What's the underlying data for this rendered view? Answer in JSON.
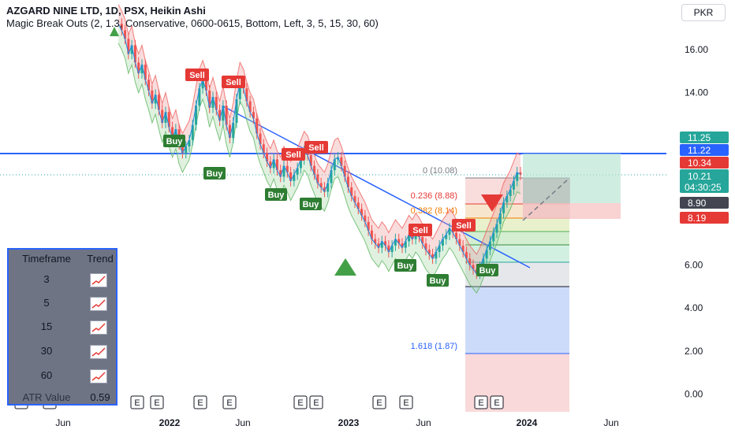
{
  "header": {
    "title": "AZGARD NINE LTD, 1D, PSX, Heikin Ashi",
    "indicator": "Magic Break Outs (2, 1.3, Conservative, 0600-0615, Bottom, Left, 3, 5, 15, 30, 60)"
  },
  "currency_button": "PKR",
  "price_tags": {
    "tag_1125": "11.25",
    "tag_1122": "11.22",
    "tag_1034": "10.34",
    "tag_1021": "10.21",
    "tag_countdown": "04:30:25",
    "tag_890": "8.90",
    "tag_819": "8.19"
  },
  "fib_labels": [
    "0 (10.08)",
    "0.236 (8.88)",
    "0.382 (8.14)",
    "1.618 (1.87)"
  ],
  "signal_labels": {
    "buy": "Buy",
    "sell": "Sell"
  },
  "earnings_marker": "E",
  "trend_table": {
    "headers": [
      "Timeframe",
      "Trend"
    ],
    "rows": [
      "3",
      "5",
      "15",
      "30",
      "60"
    ],
    "atr_label": "ATR Value",
    "atr_value": "0.59"
  },
  "colors": {
    "up": "#26a69a",
    "down": "#ef5350",
    "trendline": "#2962ff",
    "buy_label": "#2e7d32",
    "sell_label": "#e53935"
  },
  "chart_data": {
    "type": "line",
    "title": "AZGARD NINE LTD, 1D, PSX, Heikin Ashi",
    "y_ticks": [
      0,
      2,
      4,
      6,
      8,
      10,
      12,
      14,
      16
    ],
    "y_tick_labels": [
      "0.00",
      "2.00",
      "4.00",
      "6.00",
      "",
      "",
      "",
      "14.00",
      "16.00"
    ],
    "x_tick_labels": [
      "Jun",
      "2022",
      "Jun",
      "2023",
      "Jun",
      "2024",
      "Jun"
    ],
    "ylim": [
      -1,
      18
    ],
    "grid": false,
    "series": [
      {
        "values": [
          17.2,
          16.9,
          16.5,
          15.8,
          16.2,
          15.4,
          14.9,
          15.3,
          14.6,
          14.1,
          13.5,
          13.9,
          13.2,
          12.6,
          13.1,
          12.4,
          11.9,
          12.3,
          11.6,
          11.2,
          11.5,
          11.8,
          12.5,
          13.4,
          14.2,
          14.6,
          14.1,
          13.3,
          13.8,
          13.2,
          12.7,
          13.4,
          12.5,
          11.9,
          12.6,
          13.7,
          14.5,
          14.2,
          13.6,
          13.1,
          12.8,
          12.1,
          11.6,
          11.2,
          10.8,
          10.5,
          10.9,
          10.4,
          10.1,
          10.6,
          10.3,
          9.9,
          10.2,
          10.5,
          10.9,
          11.3,
          11.1,
          10.6,
          10.2,
          9.8,
          9.6,
          9.4,
          9.8,
          10.4,
          10.9,
          11.0,
          10.6,
          10.1,
          9.6,
          9.2,
          8.9,
          8.6,
          8.3,
          8.0,
          7.6,
          7.2,
          7.0,
          6.8,
          7.1,
          6.9,
          6.6,
          6.9,
          7.2,
          7.0,
          6.8,
          7.1,
          7.4,
          7.2,
          7.5,
          7.3,
          7.0,
          6.7,
          6.5,
          6.3,
          6.6,
          6.9,
          7.2,
          7.4,
          7.7,
          7.5,
          7.2,
          6.9,
          6.6,
          6.3,
          6.0,
          5.8,
          5.6,
          5.9,
          6.3,
          6.7,
          7.1,
          7.5,
          7.9,
          8.4,
          8.9,
          9.2,
          9.5,
          9.9,
          10.3,
          10.2
        ]
      }
    ]
  }
}
